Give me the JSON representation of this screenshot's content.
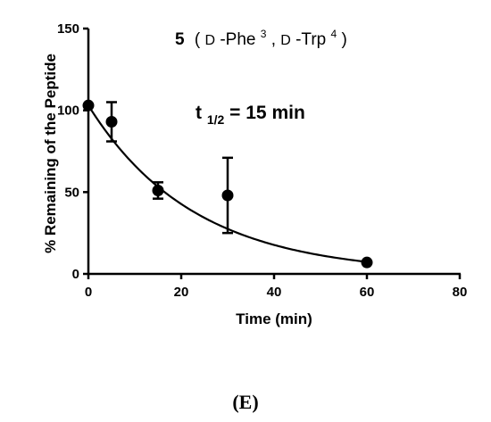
{
  "chart_data": {
    "type": "scatter",
    "title": {
      "compound_number": "5",
      "open_paren": "(",
      "d1": "D",
      "res1_name": "-Phe",
      "res1_pos": "3",
      "comma": ",",
      "d2": "D",
      "res2_name": "-Trp",
      "res2_pos": "4",
      "close_paren": ")"
    },
    "annotation": {
      "prefix": "t",
      "subscript": "1/2",
      "suffix": " = 15 min"
    },
    "xlabel": "Time (min)",
    "ylabel": "% Remaining of the Peptide",
    "xlim": [
      0,
      80
    ],
    "ylim": [
      0,
      150
    ],
    "x_ticks": [
      0,
      20,
      40,
      60,
      80
    ],
    "y_ticks": [
      0,
      50,
      100,
      150
    ],
    "points": [
      {
        "x": 0,
        "y": 103,
        "err": 0
      },
      {
        "x": 5,
        "y": 93,
        "err": 12
      },
      {
        "x": 15,
        "y": 51,
        "err": 5
      },
      {
        "x": 30,
        "y": 48,
        "err": 23
      },
      {
        "x": 60,
        "y": 7,
        "err": 0
      }
    ],
    "fit": {
      "model": "exponential decay",
      "y0": 103,
      "k": 0.044
    },
    "grid": false,
    "legend": "none"
  },
  "panel_label": "(E)"
}
